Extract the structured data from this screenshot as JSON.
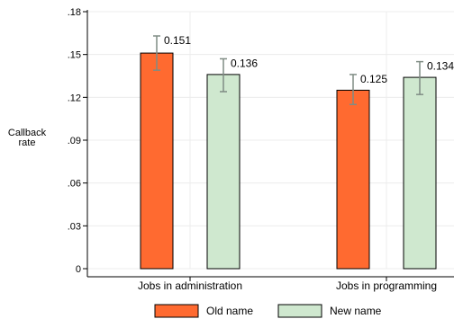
{
  "chart_data": {
    "type": "bar",
    "ylabel": [
      "Callback",
      "rate"
    ],
    "ylim": [
      0,
      0.18
    ],
    "yticks": [
      {
        "value": 0,
        "label": "0"
      },
      {
        "value": 0.03,
        "label": ".03"
      },
      {
        "value": 0.06,
        "label": ".06"
      },
      {
        "value": 0.09,
        "label": ".09"
      },
      {
        "value": 0.12,
        "label": ".12"
      },
      {
        "value": 0.15,
        "label": ".15"
      },
      {
        "value": 0.18,
        "label": ".18"
      }
    ],
    "grid": true,
    "legend_position": "bottom",
    "categories": [
      "Jobs in administration",
      "Jobs in programming"
    ],
    "series": [
      {
        "name": "Old name",
        "color": "#ff6a30",
        "values": [
          0.151,
          0.125
        ],
        "value_labels": [
          "0.151",
          "0.125"
        ],
        "ci_low": [
          0.139,
          0.115
        ],
        "ci_high": [
          0.163,
          0.136
        ]
      },
      {
        "name": "New name",
        "color": "#cfe8cf",
        "values": [
          0.136,
          0.134
        ],
        "value_labels": [
          "0.136",
          "0.134"
        ],
        "ci_low": [
          0.124,
          0.122
        ],
        "ci_high": [
          0.147,
          0.145
        ]
      }
    ],
    "errorbar_color": "#7f8c84"
  }
}
